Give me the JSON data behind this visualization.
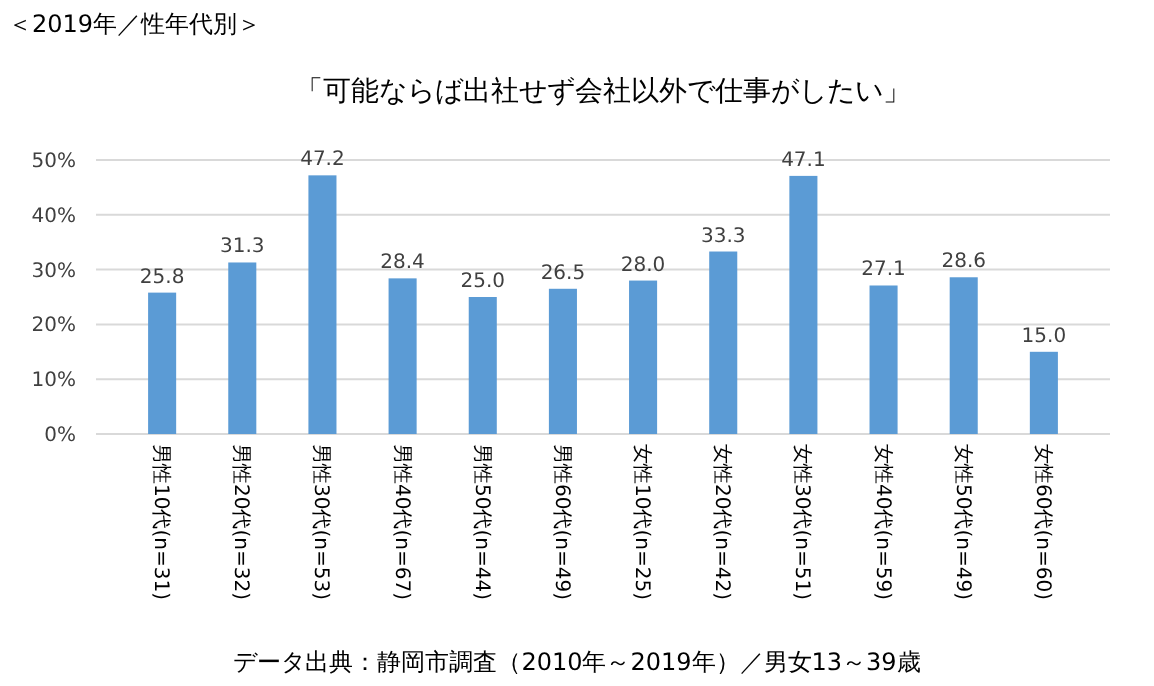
{
  "chart_data": {
    "type": "bar",
    "title": "「可能ならば出社せず会社以外で仕事がしたい」",
    "subtitle": "＜2019年／性年代別＞",
    "categories": [
      "男性10代(n=31)",
      "男性20代(n=32)",
      "男性30代(n=53)",
      "男性40代(n=67)",
      "男性50代(n=44)",
      "男性60代(n=49)",
      "女性10代(n=25)",
      "女性20代(n=42)",
      "女性30代(n=51)",
      "女性40代(n=59)",
      "女性50代(n=49)",
      "女性60代(n=60)"
    ],
    "values": [
      25.8,
      31.3,
      47.2,
      28.4,
      25.0,
      26.5,
      28.0,
      33.3,
      47.1,
      27.1,
      28.6,
      15.0
    ],
    "value_labels": [
      "25.8",
      "31.3",
      "47.2",
      "28.4",
      "25.0",
      "26.5",
      "28.0",
      "33.3",
      "47.1",
      "27.1",
      "28.6",
      "15.0"
    ],
    "color": "#5b9bd5",
    "ylim": [
      0,
      50
    ],
    "yticks": [
      {
        "value": 0,
        "label": "0%"
      },
      {
        "value": 10,
        "label": "10%"
      },
      {
        "value": 20,
        "label": "20%"
      },
      {
        "value": 30,
        "label": "30%"
      },
      {
        "value": 40,
        "label": "40%"
      },
      {
        "value": 50,
        "label": "50%"
      }
    ],
    "grid": "y",
    "annotations": [
      "データ出典：静岡市調査（2010年～2019年）／男女13～39歳"
    ]
  }
}
